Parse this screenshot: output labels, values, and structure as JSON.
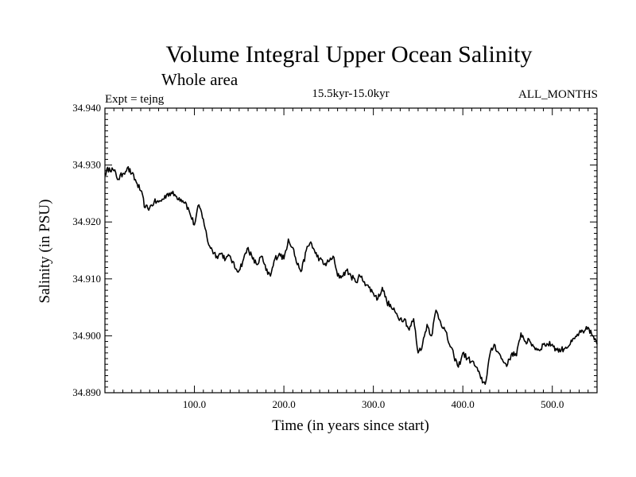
{
  "chart_data": {
    "type": "line",
    "title": "Volume Integral Upper Ocean Salinity",
    "subtitle": "Whole area",
    "experiment": "Expt = tejng",
    "period": "15.5kyr-15.0kyr",
    "months": "ALL_MONTHS",
    "xlabel": "Time (in years since start)",
    "ylabel": "Salinity (in PSU)",
    "xlim": [
      0,
      550
    ],
    "ylim": [
      34.89,
      34.94
    ],
    "x_ticks": [
      {
        "value": 100,
        "label": "100.0"
      },
      {
        "value": 200,
        "label": "200.0"
      },
      {
        "value": 300,
        "label": "300.0"
      },
      {
        "value": 400,
        "label": "400.0"
      },
      {
        "value": 500,
        "label": "500.0"
      }
    ],
    "y_ticks": [
      {
        "value": 34.94,
        "label": "34.940"
      },
      {
        "value": 34.93,
        "label": "34.930"
      },
      {
        "value": 34.92,
        "label": "34.920"
      },
      {
        "value": 34.91,
        "label": "34.910"
      },
      {
        "value": 34.9,
        "label": "34.900"
      },
      {
        "value": 34.89,
        "label": "34.890"
      }
    ],
    "grid": false,
    "series": [
      {
        "name": "salinity",
        "x": [
          0,
          5,
          10,
          15,
          20,
          25,
          30,
          35,
          40,
          45,
          50,
          55,
          60,
          65,
          70,
          75,
          80,
          85,
          90,
          95,
          100,
          105,
          110,
          115,
          120,
          125,
          130,
          135,
          140,
          145,
          150,
          155,
          160,
          165,
          170,
          175,
          180,
          185,
          190,
          195,
          200,
          205,
          210,
          215,
          220,
          225,
          230,
          235,
          240,
          245,
          250,
          255,
          260,
          265,
          270,
          275,
          280,
          285,
          290,
          295,
          300,
          305,
          310,
          315,
          320,
          325,
          330,
          335,
          340,
          345,
          350,
          355,
          360,
          365,
          370,
          375,
          380,
          385,
          390,
          395,
          400,
          405,
          410,
          415,
          420,
          425,
          430,
          435,
          440,
          445,
          450,
          455,
          460,
          465,
          470,
          475,
          480,
          485,
          490,
          495,
          500,
          505,
          510,
          515,
          520,
          525,
          530,
          535,
          540,
          545,
          550
        ],
        "values": [
          34.9285,
          34.9295,
          34.929,
          34.9275,
          34.9285,
          34.9295,
          34.9285,
          34.927,
          34.9255,
          34.9225,
          34.9225,
          34.9235,
          34.9235,
          34.924,
          34.925,
          34.925,
          34.9245,
          34.924,
          34.9235,
          34.9215,
          34.9195,
          34.923,
          34.9205,
          34.9165,
          34.915,
          34.914,
          34.9145,
          34.9135,
          34.914,
          34.912,
          34.9115,
          34.9135,
          34.9155,
          34.9135,
          34.9125,
          34.914,
          34.9115,
          34.9105,
          34.9135,
          34.9145,
          34.9135,
          34.917,
          34.9155,
          34.9125,
          34.9115,
          34.915,
          34.9165,
          34.9145,
          34.9135,
          34.9125,
          34.913,
          34.914,
          34.9105,
          34.9105,
          34.9115,
          34.9105,
          34.9095,
          34.9105,
          34.9095,
          34.9085,
          34.9075,
          34.9065,
          34.9085,
          34.906,
          34.905,
          34.904,
          34.903,
          34.903,
          34.901,
          34.903,
          34.897,
          34.8985,
          34.902,
          34.9,
          34.9045,
          34.9025,
          34.901,
          34.8985,
          34.8965,
          34.8945,
          34.897,
          34.896,
          34.8955,
          34.8945,
          34.8925,
          34.8915,
          34.8965,
          34.8985,
          34.897,
          34.8955,
          34.895,
          34.897,
          34.8965,
          34.9005,
          34.899,
          34.899,
          34.898,
          34.8975,
          34.8985,
          34.8985,
          34.8985,
          34.8975,
          34.8975,
          34.898,
          34.8985,
          34.8995,
          34.9005,
          34.9005,
          34.9015,
          34.9,
          34.8985
        ]
      }
    ]
  }
}
